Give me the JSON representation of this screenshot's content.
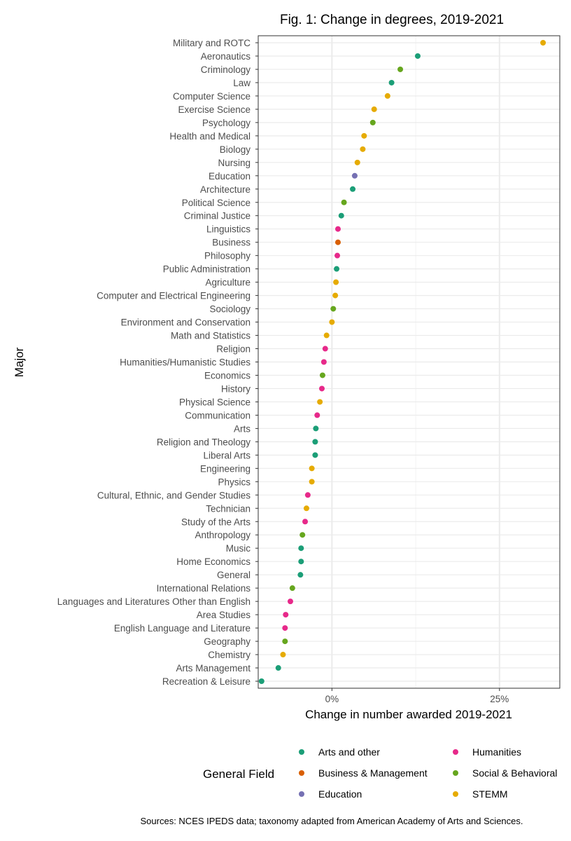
{
  "chart_data": {
    "type": "scatter",
    "title": "Fig. 1: Change in degrees, 2019-2021",
    "xlabel": "Change in number awarded 2019-2021",
    "ylabel": "Major",
    "xlim": [
      -11,
      34
    ],
    "x_ticks": [
      0,
      25
    ],
    "x_tick_labels": [
      "0%",
      "25%"
    ],
    "grid": true,
    "legend_title": "General Field",
    "legend_placement": "bottom",
    "caption": "Sources: NCES IPEDS data; taxonomy adapted from American Academy of Arts and Sciences.",
    "groups": [
      {
        "name": "Arts and other",
        "color": "#1b9e77"
      },
      {
        "name": "Business & Management",
        "color": "#d95f02"
      },
      {
        "name": "Education",
        "color": "#7570b3"
      },
      {
        "name": "Humanities",
        "color": "#e7298a"
      },
      {
        "name": "Social & Behavioral",
        "color": "#66a61e"
      },
      {
        "name": "STEMM",
        "color": "#e6ab02"
      }
    ],
    "points": [
      {
        "major": "Military and ROTC",
        "value": 31.5,
        "group": "STEMM"
      },
      {
        "major": "Aeronautics",
        "value": 12.8,
        "group": "Arts and other"
      },
      {
        "major": "Criminology",
        "value": 10.2,
        "group": "Social & Behavioral"
      },
      {
        "major": "Law",
        "value": 8.9,
        "group": "Arts and other"
      },
      {
        "major": "Computer Science",
        "value": 8.3,
        "group": "STEMM"
      },
      {
        "major": "Exercise Science",
        "value": 6.3,
        "group": "STEMM"
      },
      {
        "major": "Psychology",
        "value": 6.1,
        "group": "Social & Behavioral"
      },
      {
        "major": "Health and Medical",
        "value": 4.8,
        "group": "STEMM"
      },
      {
        "major": "Biology",
        "value": 4.6,
        "group": "STEMM"
      },
      {
        "major": "Nursing",
        "value": 3.8,
        "group": "STEMM"
      },
      {
        "major": "Education",
        "value": 3.4,
        "group": "Education"
      },
      {
        "major": "Architecture",
        "value": 3.1,
        "group": "Arts and other"
      },
      {
        "major": "Political Science",
        "value": 1.8,
        "group": "Social & Behavioral"
      },
      {
        "major": "Criminal Justice",
        "value": 1.4,
        "group": "Arts and other"
      },
      {
        "major": "Linguistics",
        "value": 0.9,
        "group": "Humanities"
      },
      {
        "major": "Business",
        "value": 0.9,
        "group": "Business & Management"
      },
      {
        "major": "Philosophy",
        "value": 0.8,
        "group": "Humanities"
      },
      {
        "major": "Public Administration",
        "value": 0.7,
        "group": "Arts and other"
      },
      {
        "major": "Agriculture",
        "value": 0.6,
        "group": "STEMM"
      },
      {
        "major": "Computer and Electrical Engineering",
        "value": 0.5,
        "group": "STEMM"
      },
      {
        "major": "Sociology",
        "value": 0.2,
        "group": "Social & Behavioral"
      },
      {
        "major": "Environment and Conservation",
        "value": 0.0,
        "group": "STEMM"
      },
      {
        "major": "Math and Statistics",
        "value": -0.8,
        "group": "STEMM"
      },
      {
        "major": "Religion",
        "value": -1.0,
        "group": "Humanities"
      },
      {
        "major": "Humanities/Humanistic Studies",
        "value": -1.2,
        "group": "Humanities"
      },
      {
        "major": "Economics",
        "value": -1.4,
        "group": "Social & Behavioral"
      },
      {
        "major": "History",
        "value": -1.5,
        "group": "Humanities"
      },
      {
        "major": "Physical Science",
        "value": -1.8,
        "group": "STEMM"
      },
      {
        "major": "Communication",
        "value": -2.2,
        "group": "Humanities"
      },
      {
        "major": "Arts",
        "value": -2.4,
        "group": "Arts and other"
      },
      {
        "major": "Religion and Theology",
        "value": -2.5,
        "group": "Arts and other"
      },
      {
        "major": "Liberal Arts",
        "value": -2.5,
        "group": "Arts and other"
      },
      {
        "major": "Engineering",
        "value": -3.0,
        "group": "STEMM"
      },
      {
        "major": "Physics",
        "value": -3.0,
        "group": "STEMM"
      },
      {
        "major": "Cultural, Ethnic, and Gender Studies",
        "value": -3.6,
        "group": "Humanities"
      },
      {
        "major": "Technician",
        "value": -3.8,
        "group": "STEMM"
      },
      {
        "major": "Study of the Arts",
        "value": -4.0,
        "group": "Humanities"
      },
      {
        "major": "Anthropology",
        "value": -4.4,
        "group": "Social & Behavioral"
      },
      {
        "major": "Music",
        "value": -4.6,
        "group": "Arts and other"
      },
      {
        "major": "Home Economics",
        "value": -4.6,
        "group": "Arts and other"
      },
      {
        "major": "General",
        "value": -4.7,
        "group": "Arts and other"
      },
      {
        "major": "International Relations",
        "value": -5.9,
        "group": "Social & Behavioral"
      },
      {
        "major": "Languages and Literatures Other than English",
        "value": -6.2,
        "group": "Humanities"
      },
      {
        "major": "Area Studies",
        "value": -6.9,
        "group": "Humanities"
      },
      {
        "major": "English Language and Literature",
        "value": -7.0,
        "group": "Humanities"
      },
      {
        "major": "Geography",
        "value": -7.0,
        "group": "Social & Behavioral"
      },
      {
        "major": "Chemistry",
        "value": -7.3,
        "group": "STEMM"
      },
      {
        "major": "Arts Management",
        "value": -8.0,
        "group": "Arts and other"
      },
      {
        "major": "Recreation & Leisure",
        "value": -10.5,
        "group": "Arts and other"
      }
    ]
  }
}
